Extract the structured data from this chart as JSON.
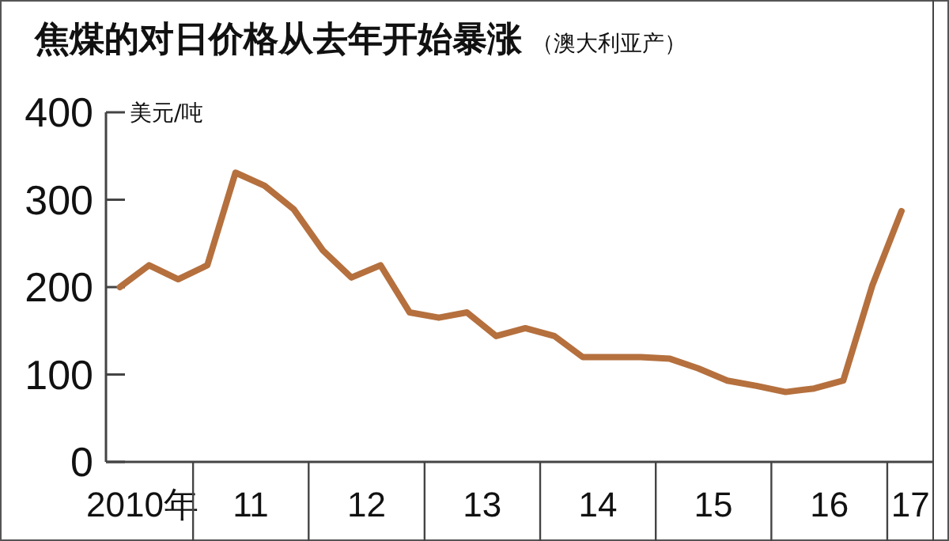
{
  "chart_data": {
    "type": "line",
    "title": "焦煤的对日价格从去年开始暴涨",
    "subtitle": "（澳大利亚产）",
    "ylabel": "美元/吨",
    "x": [
      "2010-05-15",
      "2010-08-15",
      "2010-11-15",
      "2011-02-15",
      "2011-05-15",
      "2011-08-15",
      "2011-11-15",
      "2012-02-15",
      "2012-05-15",
      "2012-08-15",
      "2012-11-15",
      "2013-02-15",
      "2013-05-15",
      "2013-08-15",
      "2013-11-15",
      "2014-02-15",
      "2014-05-15",
      "2014-08-15",
      "2014-11-15",
      "2015-02-15",
      "2015-05-15",
      "2015-08-15",
      "2015-11-15",
      "2016-02-15",
      "2016-05-15",
      "2016-08-15",
      "2016-11-15",
      "2017-02-15"
    ],
    "series": [
      {
        "color": "#b5703e",
        "values": [
          200,
          225,
          209,
          225,
          331,
          316,
          289,
          242,
          211,
          225,
          171,
          165,
          171,
          144,
          153,
          144,
          120,
          120,
          120,
          118,
          107,
          93,
          87,
          80,
          84,
          93,
          202,
          287
        ]
      }
    ],
    "xlim": [
      "2010-04-01",
      "2017-05-26"
    ],
    "xticks": [
      {
        "value": "2010-07-25",
        "label": "2010年"
      },
      {
        "value": "2011-01-01",
        "label": null
      },
      {
        "value": "2011-07-02",
        "label": "11"
      },
      {
        "value": "2012-01-01",
        "label": null
      },
      {
        "value": "2012-07-02",
        "label": "12"
      },
      {
        "value": "2013-01-01",
        "label": null
      },
      {
        "value": "2013-07-02",
        "label": "13"
      },
      {
        "value": "2014-01-01",
        "label": null
      },
      {
        "value": "2014-07-02",
        "label": "14"
      },
      {
        "value": "2015-01-01",
        "label": null
      },
      {
        "value": "2015-07-02",
        "label": "15"
      },
      {
        "value": "2016-01-01",
        "label": null
      },
      {
        "value": "2016-07-02",
        "label": "16"
      },
      {
        "value": "2017-01-01",
        "label": null
      },
      {
        "value": "2017-03-15",
        "label": "17"
      }
    ],
    "ylim": [
      0,
      400
    ],
    "yticks": [
      0,
      100,
      200,
      300,
      400
    ],
    "grid": false,
    "marker": "none",
    "line_style": "solid"
  }
}
